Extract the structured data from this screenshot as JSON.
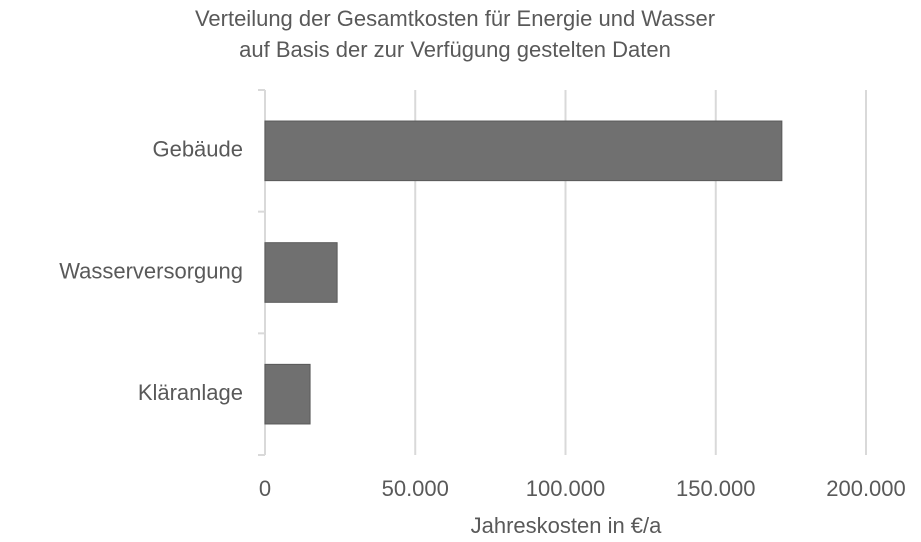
{
  "chart_data": {
    "type": "hbar",
    "title": [
      "Verteilung der Gesamtkosten für Energie und Wasser",
      "auf Basis der zur Verfügung gestelten Daten"
    ],
    "categories": [
      "Gebäude",
      "Wasserversorgung",
      "Kläranlage"
    ],
    "values": [
      172000,
      24000,
      15000
    ],
    "color": "#707070",
    "xlabel": "Jahreskosten in €/a",
    "xlim": [
      0,
      200000
    ],
    "xticks": [
      0,
      {
        "value": 50000,
        "label": "50.000"
      },
      {
        "value": 100000,
        "label": "100.000"
      },
      {
        "value": 150000,
        "label": "150.000"
      },
      {
        "value": 200000,
        "label": "200.000"
      }
    ],
    "grid": true
  }
}
